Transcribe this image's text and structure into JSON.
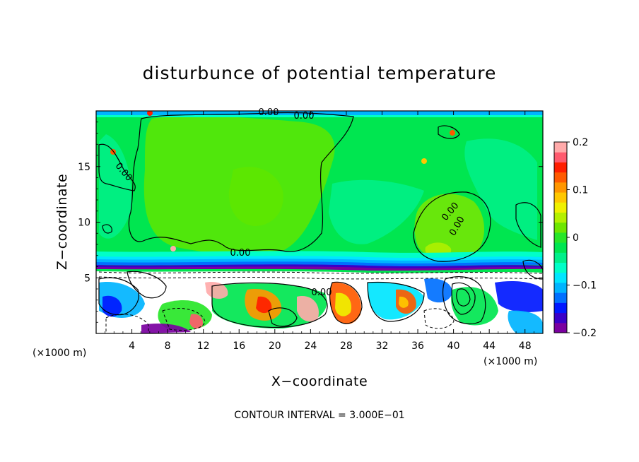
{
  "chart_data": {
    "type": "heatmap",
    "title": "disturbunce of potential temperature",
    "xlabel": "X−coordinate",
    "ylabel": "Z−coordinate",
    "x_unit": "(×1000 m)",
    "z_unit": "(×1000 m)",
    "xlim": [
      0,
      50
    ],
    "ylim": [
      0,
      20
    ],
    "x_ticks": [
      4,
      8,
      12,
      16,
      20,
      24,
      28,
      32,
      36,
      40,
      44,
      48
    ],
    "y_ticks": [
      5,
      10,
      15
    ],
    "colorbar": {
      "range": [
        -0.2,
        0.2
      ],
      "ticks": [
        "0.2",
        "0.1",
        "0",
        "−0.1",
        "−0.2"
      ],
      "tick_values": [
        0.2,
        0.1,
        0,
        -0.1,
        -0.2
      ],
      "colors": [
        "#7a00a0",
        "#3a00c8",
        "#0018ff",
        "#0070ff",
        "#00b4ff",
        "#00e6ff",
        "#00ffc8",
        "#00f08a",
        "#00e650",
        "#28e628",
        "#6ee600",
        "#b4f000",
        "#f0f000",
        "#ffc800",
        "#ff9600",
        "#ff5a00",
        "#ff1e00",
        "#ff5a6e",
        "#ffaaaa"
      ]
    },
    "contour_labels": [
      "0.00",
      "0.00",
      "0.00",
      "0.00",
      "0.00",
      "0.00",
      "0.00"
    ],
    "contour_interval_text": "CONTOUR INTERVAL = 3.000E−01"
  }
}
